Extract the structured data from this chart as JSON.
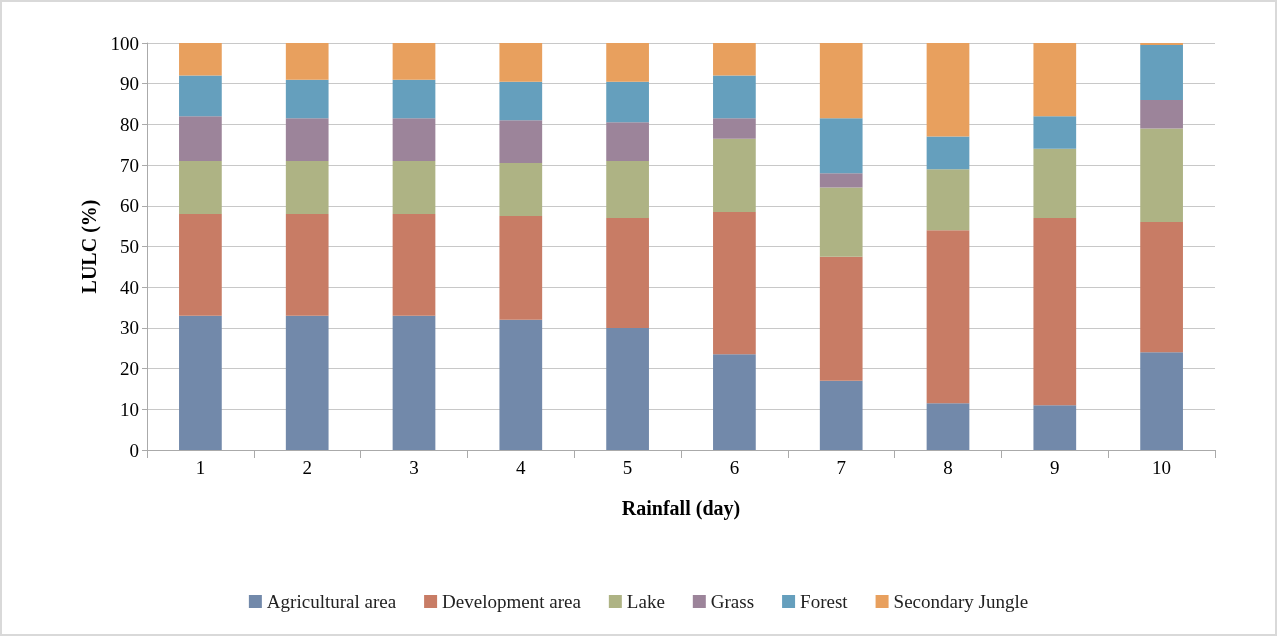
{
  "chart_data": {
    "type": "bar",
    "stacked": true,
    "xlabel": "Rainfall (day)",
    "ylabel": "LULC (%)",
    "categories": [
      "1",
      "2",
      "3",
      "4",
      "5",
      "6",
      "7",
      "8",
      "9",
      "10"
    ],
    "series": [
      {
        "name": "Agricultural area",
        "color": "#7289aa",
        "values": [
          33,
          33,
          33,
          32,
          30,
          23.5,
          17,
          11.5,
          11,
          24
        ]
      },
      {
        "name": "Development area",
        "color": "#c87c65",
        "values": [
          25,
          25,
          25,
          25.5,
          27,
          35,
          30.5,
          42.5,
          46,
          32
        ]
      },
      {
        "name": "Lake",
        "color": "#aeb384",
        "values": [
          13,
          13,
          13,
          13,
          14,
          18,
          17,
          15,
          17,
          23
        ]
      },
      {
        "name": "Grass",
        "color": "#9c849a",
        "values": [
          11,
          10.5,
          10.5,
          10.5,
          9.5,
          5,
          3.5,
          0,
          0,
          7
        ]
      },
      {
        "name": "Forest",
        "color": "#659fbd",
        "values": [
          10,
          9.5,
          9.5,
          9.5,
          10,
          10.5,
          13.5,
          8,
          8,
          13.5
        ]
      },
      {
        "name": "Secondary Jungle",
        "color": "#e8a05e",
        "values": [
          8,
          9,
          9,
          9.5,
          9.5,
          8,
          18.5,
          23,
          18,
          0.5
        ]
      }
    ],
    "ylim": [
      0,
      100
    ],
    "yticks": [
      0,
      10,
      20,
      30,
      40,
      50,
      60,
      70,
      80,
      90,
      100
    ],
    "grid": "y",
    "legend": "bottom"
  }
}
